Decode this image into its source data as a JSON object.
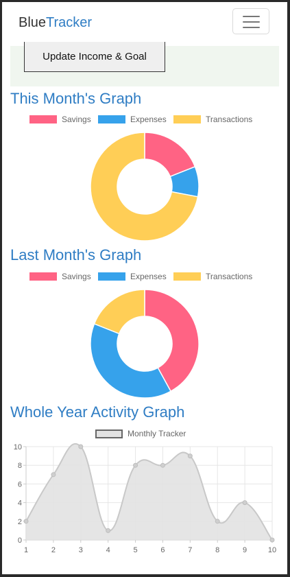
{
  "brand": {
    "prefix": "Blue",
    "accent": "Tracker"
  },
  "nav": {
    "menu_icon": "hamburger-menu-icon"
  },
  "panel": {
    "update_label": "Update Income & Goal"
  },
  "colors": {
    "savings": "#ff6384",
    "expenses": "#36a2eb",
    "transactions": "#ffce56",
    "accent": "#2f7dc4",
    "line_fill": "#e2e2e2",
    "line_stroke": "#c8c8c8"
  },
  "sections": {
    "this_month": "This Month's Graph",
    "last_month": "Last Month's Graph",
    "whole_year": "Whole Year Activity Graph"
  },
  "legend": {
    "savings": "Savings",
    "expenses": "Expenses",
    "transactions": "Transactions",
    "monthly": "Monthly Tracker"
  },
  "chart_data": [
    {
      "type": "pie",
      "variant": "doughnut",
      "title": "This Month's Graph",
      "labels": [
        "Savings",
        "Expenses",
        "Transactions"
      ],
      "values": [
        19,
        9,
        72
      ],
      "legend_position": "top"
    },
    {
      "type": "pie",
      "variant": "doughnut",
      "title": "Last Month's Graph",
      "labels": [
        "Savings",
        "Expenses",
        "Transactions"
      ],
      "values": [
        42,
        39,
        19
      ],
      "legend_position": "top"
    },
    {
      "type": "area",
      "title": "Whole Year Activity Graph",
      "series": [
        {
          "name": "Monthly Tracker",
          "values": [
            2,
            7,
            10,
            1,
            8,
            8,
            9,
            2,
            4,
            0
          ]
        }
      ],
      "x": [
        1,
        2,
        3,
        4,
        5,
        6,
        7,
        8,
        9,
        10
      ],
      "ylim": [
        0,
        10
      ],
      "yticks": [
        0,
        2,
        4,
        6,
        8,
        10
      ],
      "grid": true,
      "legend_position": "top"
    }
  ]
}
